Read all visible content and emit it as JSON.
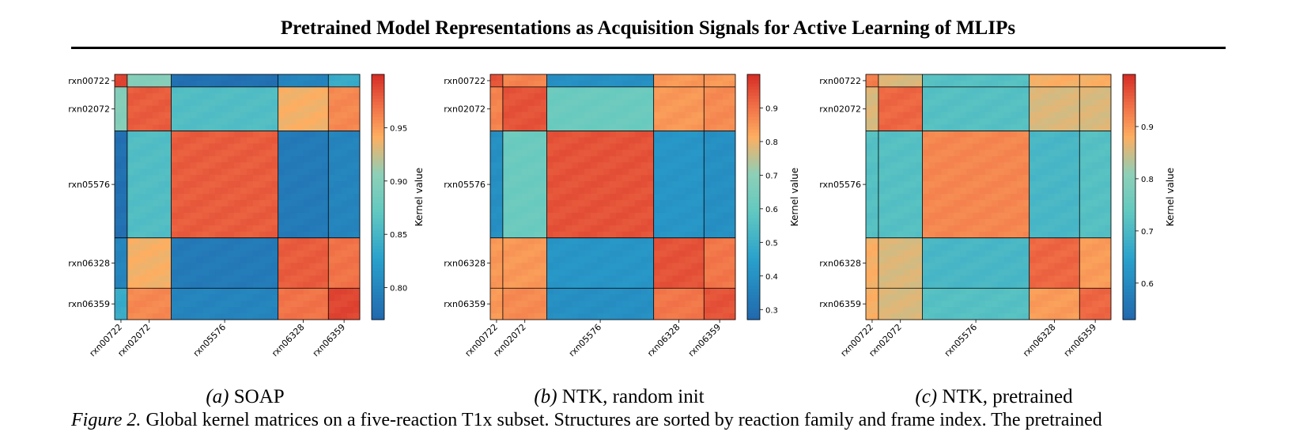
{
  "header": {
    "title": "Pretrained Model Representations as Acquisition Signals for Active Learning of MLIPs"
  },
  "figure": {
    "caption_label": "Figure 2.",
    "caption_text": " Global kernel matrices on a five-reaction T1x subset. Structures are sorted by reaction family and frame index. The pretrained"
  },
  "chart_data": [
    {
      "type": "heatmap",
      "panel_label": "(a)",
      "panel_title": "SOAP",
      "reactions": [
        "rxn00722",
        "rxn02072",
        "rxn05576",
        "rxn06328",
        "rxn06359"
      ],
      "colorbar_label": "Kernel value",
      "colorbar_range": [
        0.77,
        1.0
      ],
      "colorbar_ticks": [
        "0.80",
        "0.85",
        "0.90",
        "0.95"
      ],
      "block_means": [
        [
          0.99,
          0.9,
          0.78,
          0.8,
          0.84
        ],
        [
          0.9,
          0.98,
          0.86,
          0.94,
          0.96
        ],
        [
          0.78,
          0.86,
          0.98,
          0.79,
          0.8
        ],
        [
          0.8,
          0.94,
          0.79,
          0.98,
          0.97
        ],
        [
          0.84,
          0.96,
          0.8,
          0.97,
          0.99
        ]
      ]
    },
    {
      "type": "heatmap",
      "panel_label": "(b)",
      "panel_title": "NTK, random init",
      "reactions": [
        "rxn00722",
        "rxn02072",
        "rxn05576",
        "rxn06328",
        "rxn06359"
      ],
      "colorbar_label": "Kernel value",
      "colorbar_range": [
        0.27,
        1.0
      ],
      "colorbar_ticks": [
        "0.3",
        "0.4",
        "0.5",
        "0.6",
        "0.7",
        "0.8",
        "0.9"
      ],
      "block_means": [
        [
          0.95,
          0.88,
          0.4,
          0.85,
          0.85
        ],
        [
          0.88,
          0.95,
          0.62,
          0.85,
          0.87
        ],
        [
          0.4,
          0.62,
          0.95,
          0.42,
          0.4
        ],
        [
          0.85,
          0.85,
          0.42,
          0.95,
          0.9
        ],
        [
          0.85,
          0.87,
          0.4,
          0.9,
          0.95
        ]
      ]
    },
    {
      "type": "heatmap",
      "panel_label": "(c)",
      "panel_title": "NTK, pretrained",
      "reactions": [
        "rxn00722",
        "rxn02072",
        "rxn05576",
        "rxn06328",
        "rxn06359"
      ],
      "colorbar_label": "Kernel value",
      "colorbar_range": [
        0.53,
        1.0
      ],
      "colorbar_ticks": [
        "0.6",
        "0.7",
        "0.8",
        "0.9"
      ],
      "block_means": [
        [
          0.93,
          0.86,
          0.72,
          0.88,
          0.88
        ],
        [
          0.86,
          0.95,
          0.72,
          0.86,
          0.86
        ],
        [
          0.72,
          0.72,
          0.92,
          0.7,
          0.72
        ],
        [
          0.88,
          0.86,
          0.7,
          0.95,
          0.9
        ],
        [
          0.88,
          0.86,
          0.72,
          0.9,
          0.95
        ]
      ]
    }
  ]
}
